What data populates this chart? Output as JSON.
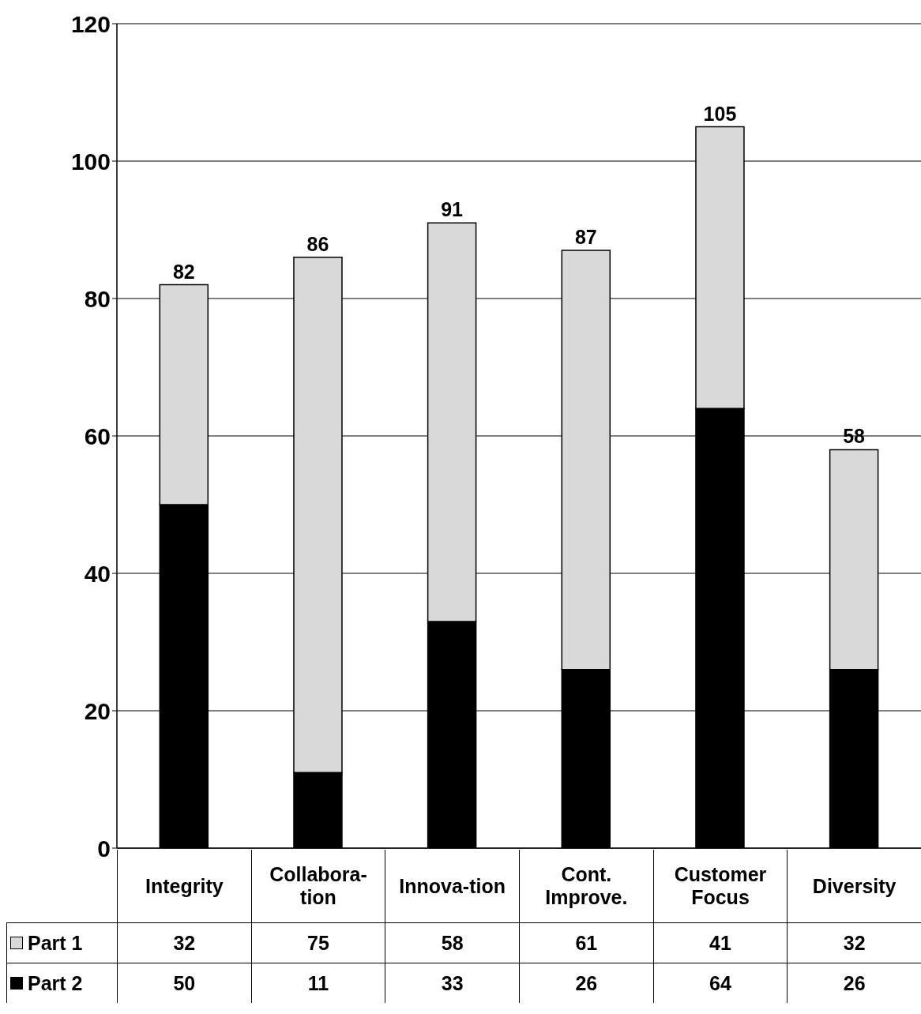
{
  "chart_data": {
    "type": "bar",
    "stacked": true,
    "categories": [
      "Integrity",
      "Collabora-tion",
      "Innova-tion",
      "Cont. Improve.",
      "Customer Focus",
      "Diversity"
    ],
    "series": [
      {
        "name": "Part 2",
        "color": "#000000",
        "values": [
          50,
          11,
          33,
          26,
          64,
          26
        ]
      },
      {
        "name": "Part 1",
        "color": "#d9d9d9",
        "values": [
          32,
          75,
          58,
          61,
          41,
          32
        ]
      }
    ],
    "totals": [
      "82",
      "86",
      "91",
      "87",
      "105",
      "58"
    ],
    "ylim": [
      0,
      120
    ],
    "yticks": [
      0,
      20,
      40,
      60,
      80,
      100,
      120
    ],
    "grid": "y",
    "legend": "bottom",
    "data_labels": true
  }
}
